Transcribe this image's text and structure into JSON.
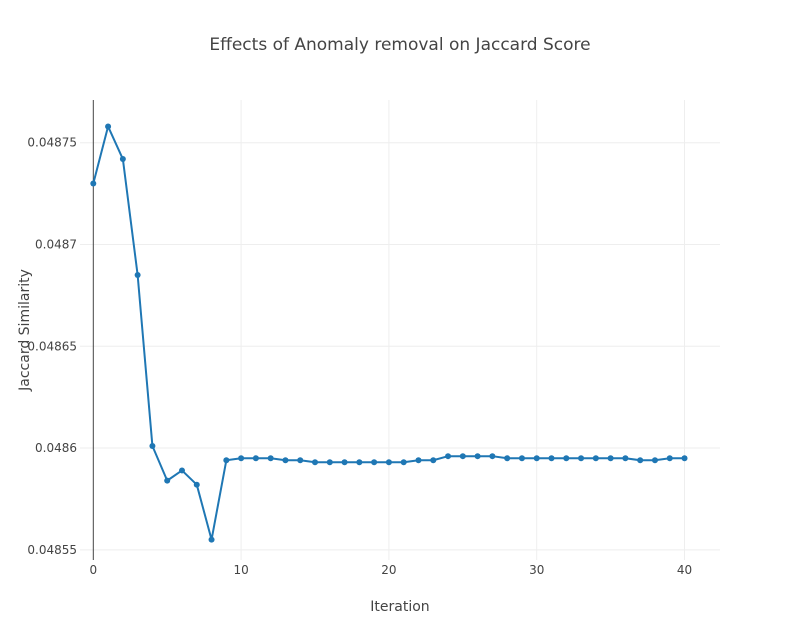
{
  "chart_data": {
    "type": "line",
    "title": "Effects of Anomaly removal on Jaccard Score",
    "xlabel": "Iteration",
    "ylabel": "Jaccard Similarity",
    "xlim": [
      -0.9,
      42.4
    ],
    "ylim": [
      0.048545,
      0.048771
    ],
    "x_ticks": [
      0,
      10,
      20,
      30,
      40
    ],
    "x_tick_labels": [
      "0",
      "10",
      "20",
      "30",
      "40"
    ],
    "y_ticks": [
      0.04855,
      0.0486,
      0.04865,
      0.0487,
      0.04875
    ],
    "y_tick_labels": [
      "0.04855",
      "0.0486",
      "0.04865",
      "0.0487",
      "0.04875"
    ],
    "grid": true,
    "legend": "none",
    "color": "#1f77b4",
    "series": [
      {
        "x": [
          0,
          1,
          2,
          3,
          4,
          5,
          6,
          7,
          8,
          9,
          10,
          11,
          12,
          13,
          14,
          15,
          16,
          17,
          18,
          19,
          20,
          21,
          22,
          23,
          24,
          25,
          26,
          27,
          28,
          29,
          30,
          31,
          32,
          33,
          34,
          35,
          36,
          37,
          38,
          39,
          40
        ],
        "values": [
          0.04873,
          0.048758,
          0.048742,
          0.048685,
          0.048601,
          0.048584,
          0.048589,
          0.048582,
          0.048555,
          0.048594,
          0.048595,
          0.048595,
          0.048595,
          0.048594,
          0.048594,
          0.048593,
          0.048593,
          0.048593,
          0.048593,
          0.048593,
          0.048593,
          0.048593,
          0.048594,
          0.048594,
          0.048596,
          0.048596,
          0.048596,
          0.048596,
          0.048595,
          0.048595,
          0.048595,
          0.048595,
          0.048595,
          0.048595,
          0.048595,
          0.048595,
          0.048595,
          0.048594,
          0.048594,
          0.048595,
          0.048595
        ]
      }
    ]
  }
}
